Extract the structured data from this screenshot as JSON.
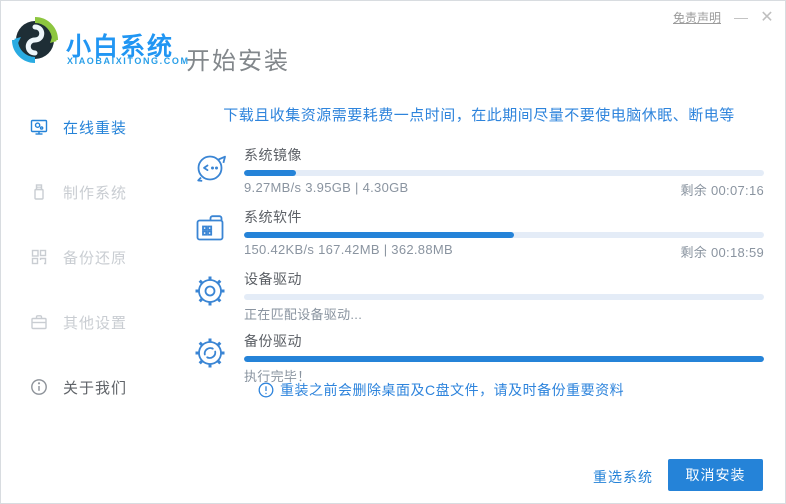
{
  "titlebar": {
    "disclaimer_label": "免责声明",
    "minimize_glyph": "—",
    "close_glyph": "✕"
  },
  "brand": {
    "name": "小白系统",
    "domain": "XIAOBAIXITONG.COM"
  },
  "header": {
    "page_title": "开始安装"
  },
  "sidebar": {
    "items": [
      {
        "label": "在线重装",
        "icon": "monitor-reinstall-icon",
        "active": true
      },
      {
        "label": "制作系统",
        "icon": "usb-drive-icon",
        "active": false
      },
      {
        "label": "备份还原",
        "icon": "backup-grid-icon",
        "active": false
      },
      {
        "label": "其他设置",
        "icon": "briefcase-icon",
        "active": false
      },
      {
        "label": "关于我们",
        "icon": "info-circle-icon",
        "active": false
      }
    ]
  },
  "main": {
    "notice": "下载且收集资源需要耗费一点时间，在此期间尽量不要使电脑休眠、断电等",
    "tasks": [
      {
        "title": "系统镜像",
        "icon": "mascot-face-icon",
        "progress": 10,
        "status_left": "9.27MB/s 3.95GB | 4.30GB",
        "status_right": "剩余 00:07:16"
      },
      {
        "title": "系统软件",
        "icon": "folder-apps-icon",
        "progress": 52,
        "status_left": "150.42KB/s 167.42MB | 362.88MB",
        "status_right": "剩余 00:18:59"
      },
      {
        "title": "设备驱动",
        "icon": "gear-icon",
        "progress": 0,
        "status_left": "正在匹配设备驱动...",
        "status_right": ""
      },
      {
        "title": "备份驱动",
        "icon": "gear-sync-icon",
        "progress": 100,
        "status_left": "执行完毕！",
        "status_right": ""
      }
    ],
    "warning": "重装之前会删除桌面及C盘文件，请及时备份重要资料"
  },
  "footer": {
    "reselect_label": "重选系统",
    "cancel_label": "取消安装"
  },
  "colors": {
    "accent_blue": "#2583d8",
    "notice_blue": "#2e84dc",
    "progress_track": "#e4ecf7",
    "brand_blue": "#2196f3"
  }
}
